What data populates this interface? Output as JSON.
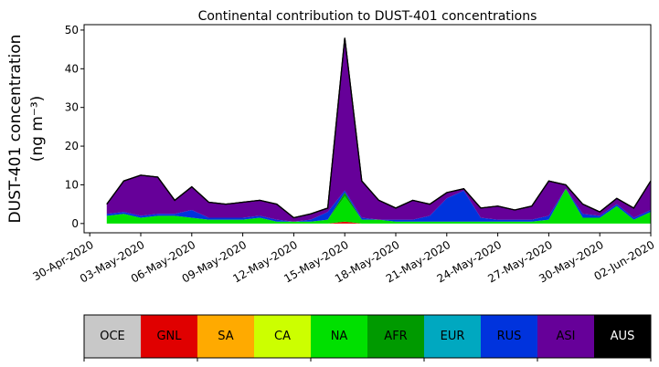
{
  "chart_data": {
    "type": "stacked-area",
    "title": "Continental contribution to DUST-401 concentrations",
    "ylabel": [
      "DUST-401 concentration",
      "(ng m⁻³)"
    ],
    "x": [
      "2020-05-01",
      "2020-05-02",
      "2020-05-03",
      "2020-05-04",
      "2020-05-05",
      "2020-05-06",
      "2020-05-07",
      "2020-05-08",
      "2020-05-09",
      "2020-05-10",
      "2020-05-11",
      "2020-05-12",
      "2020-05-13",
      "2020-05-14",
      "2020-05-15",
      "2020-05-16",
      "2020-05-17",
      "2020-05-18",
      "2020-05-19",
      "2020-05-20",
      "2020-05-21",
      "2020-05-22",
      "2020-05-23",
      "2020-05-24",
      "2020-05-25",
      "2020-05-26",
      "2020-05-27",
      "2020-05-28",
      "2020-05-29",
      "2020-05-30",
      "2020-05-31",
      "2020-06-01",
      "2020-06-02"
    ],
    "series": [
      {
        "name": "OCE",
        "color": "#c8c8c8",
        "values": [
          0,
          0,
          0,
          0,
          0,
          0,
          0,
          0,
          0,
          0,
          0,
          0,
          0,
          0,
          0,
          0,
          0,
          0,
          0,
          0,
          0,
          0,
          0,
          0,
          0,
          0,
          0,
          0,
          0,
          0,
          0,
          0,
          0
        ]
      },
      {
        "name": "GNL",
        "color": "#e00000",
        "values": [
          0,
          0,
          0,
          0,
          0,
          0,
          0,
          0,
          0,
          0,
          0,
          0,
          0,
          0,
          0.5,
          0,
          0,
          0,
          0,
          0,
          0,
          0,
          0,
          0,
          0,
          0,
          0,
          0,
          0,
          0,
          0,
          0,
          0
        ]
      },
      {
        "name": "SA",
        "color": "#ffaa00",
        "values": [
          0,
          0,
          0,
          0,
          0,
          0,
          0,
          0,
          0,
          0,
          0,
          0,
          0,
          0,
          0,
          0,
          0,
          0,
          0,
          0,
          0,
          0,
          0,
          0,
          0,
          0,
          0,
          0,
          0,
          0,
          0,
          0,
          0
        ]
      },
      {
        "name": "CA",
        "color": "#ccff00",
        "values": [
          0,
          0,
          0,
          0,
          0,
          0,
          0,
          0,
          0,
          0,
          0,
          0,
          0,
          0,
          0,
          0,
          0,
          0,
          0,
          0,
          0,
          0,
          0,
          0,
          0,
          0,
          0,
          0,
          0,
          0,
          0,
          0,
          0
        ]
      },
      {
        "name": "NA",
        "color": "#00e000",
        "values": [
          2,
          2.5,
          1.5,
          2,
          2,
          1.5,
          1,
          1,
          1,
          1.5,
          0.5,
          0.5,
          0.5,
          1,
          6.5,
          1,
          1,
          0.5,
          0.5,
          0.5,
          0.5,
          0.5,
          0.5,
          0.5,
          0.5,
          0.5,
          1,
          9,
          1.5,
          1.5,
          4.5,
          1,
          3
        ]
      },
      {
        "name": "AFR",
        "color": "#009a00",
        "values": [
          0,
          0,
          0,
          0,
          0,
          0,
          0,
          0,
          0,
          0,
          0,
          0,
          0,
          0,
          1,
          0,
          0,
          0,
          0,
          0,
          0,
          0,
          0,
          0,
          0,
          0,
          0,
          0,
          0,
          0,
          0,
          0,
          0
        ]
      },
      {
        "name": "EUR",
        "color": "#00a8c0",
        "values": [
          0,
          0,
          0,
          0,
          0,
          0,
          0,
          0,
          0,
          0,
          0,
          0,
          0,
          0,
          0,
          0,
          0,
          0,
          0,
          0,
          0,
          0,
          0,
          0,
          0,
          0,
          0,
          0,
          0,
          0,
          0,
          0,
          0
        ]
      },
      {
        "name": "RUS",
        "color": "#0033dd",
        "values": [
          0.5,
          0.5,
          0.5,
          0.5,
          0.5,
          2,
          0.5,
          0.5,
          0.5,
          0.5,
          0.5,
          0,
          0.5,
          2,
          0.5,
          0.5,
          0,
          0.5,
          0.5,
          1.5,
          6,
          8,
          1,
          0.5,
          0.5,
          0.5,
          1,
          0,
          1,
          0.5,
          0.5,
          0.5,
          0.5
        ]
      },
      {
        "name": "ASI",
        "color": "#660099",
        "values": [
          2.5,
          8,
          10.5,
          9.5,
          3.5,
          6,
          4,
          3.5,
          4,
          4,
          4,
          1,
          1.5,
          1,
          39.5,
          9.5,
          5,
          3,
          5,
          3,
          1.5,
          0.5,
          2.5,
          3.5,
          2.5,
          3.5,
          9,
          1,
          2.5,
          1,
          1.5,
          2.5,
          7.5
        ]
      },
      {
        "name": "AUS",
        "color": "#000000",
        "values": [
          0,
          0,
          0,
          0,
          0,
          0,
          0,
          0,
          0,
          0,
          0,
          0,
          0,
          0,
          0,
          0,
          0,
          0,
          0,
          0,
          0,
          0,
          0,
          0,
          0,
          0,
          0,
          0,
          0,
          0,
          0,
          0,
          0
        ]
      }
    ],
    "xlim": [
      "2020-04-29T16:00:00Z",
      "2020-06-02T00:00:00Z"
    ],
    "xticks": [
      {
        "value": "2020-04-30",
        "label": "30-Apr-2020"
      },
      {
        "value": "2020-05-03",
        "label": "03-May-2020"
      },
      {
        "value": "2020-05-06",
        "label": "06-May-2020"
      },
      {
        "value": "2020-05-09",
        "label": "09-May-2020"
      },
      {
        "value": "2020-05-12",
        "label": "12-May-2020"
      },
      {
        "value": "2020-05-15",
        "label": "15-May-2020"
      },
      {
        "value": "2020-05-18",
        "label": "18-May-2020"
      },
      {
        "value": "2020-05-21",
        "label": "21-May-2020"
      },
      {
        "value": "2020-05-24",
        "label": "24-May-2020"
      },
      {
        "value": "2020-05-27",
        "label": "27-May-2020"
      },
      {
        "value": "2020-05-30",
        "label": "30-May-2020"
      },
      {
        "value": "2020-06-02",
        "label": "02-Jun-2020"
      }
    ],
    "ylim": [
      -2.4,
      51.4
    ],
    "yticks": [
      0,
      10,
      20,
      30,
      40,
      50
    ]
  }
}
